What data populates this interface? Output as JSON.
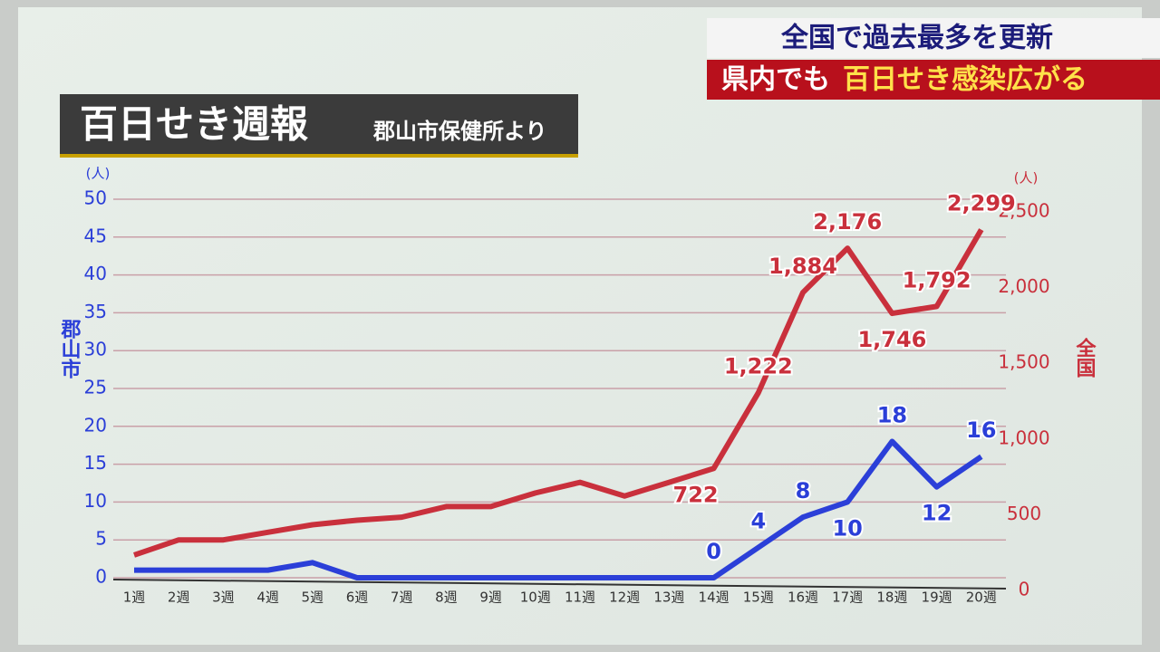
{
  "banner": {
    "line1": "全国で過去最多を更新",
    "line2_prefix": "県内でも",
    "line2_highlight": "百日せき感染広がる"
  },
  "chart_data": {
    "type": "line",
    "title": "百日せき週報",
    "subtitle": "郡山市保健所より",
    "categories": [
      "1週",
      "2週",
      "3週",
      "4週",
      "5週",
      "6週",
      "7週",
      "8週",
      "9週",
      "10週",
      "11週",
      "12週",
      "13週",
      "14週",
      "15週",
      "16週",
      "17週",
      "18週",
      "19週",
      "20週"
    ],
    "ylim": [
      0,
      50
    ],
    "yticks": [
      0,
      5,
      10,
      15,
      20,
      25,
      30,
      35,
      40,
      45,
      50
    ],
    "y_label": "郡山市",
    "y_unit": "(人)",
    "y2lim": [
      0,
      2500
    ],
    "y2ticks": [
      0,
      500,
      {
        "value": 1000,
        "label": "1,000"
      },
      {
        "value": 1500,
        "label": "1,500"
      },
      {
        "value": 2000,
        "label": "2,000"
      },
      {
        "value": 2500,
        "label": "2,500"
      }
    ],
    "y2_label": "全国",
    "y2_unit": "(人)",
    "grid": true,
    "series": [
      {
        "name": "郡山市",
        "color": "#2b3fd8",
        "values": [
          1,
          1,
          1,
          1,
          2,
          0,
          0,
          0,
          0,
          0,
          0,
          0,
          0,
          0,
          4,
          8,
          10,
          18,
          12,
          16
        ],
        "value_labels": [
          null,
          null,
          null,
          null,
          null,
          null,
          null,
          null,
          null,
          null,
          null,
          null,
          null,
          "0",
          "4",
          "8",
          "10",
          "18",
          "12",
          "16"
        ]
      },
      {
        "name": "全国",
        "color": "#c9303c",
        "axis": "y2",
        "values": [
          150,
          250,
          250,
          300,
          350,
          380,
          400,
          470,
          470,
          560,
          630,
          540,
          630,
          722,
          1222,
          1884,
          2176,
          1746,
          1792,
          2299
        ],
        "value_labels": [
          null,
          null,
          null,
          null,
          null,
          null,
          null,
          null,
          null,
          null,
          null,
          null,
          null,
          "722",
          "1,222",
          "1,884",
          "2,176",
          "1,746",
          "1,792",
          "2,299"
        ]
      }
    ]
  }
}
